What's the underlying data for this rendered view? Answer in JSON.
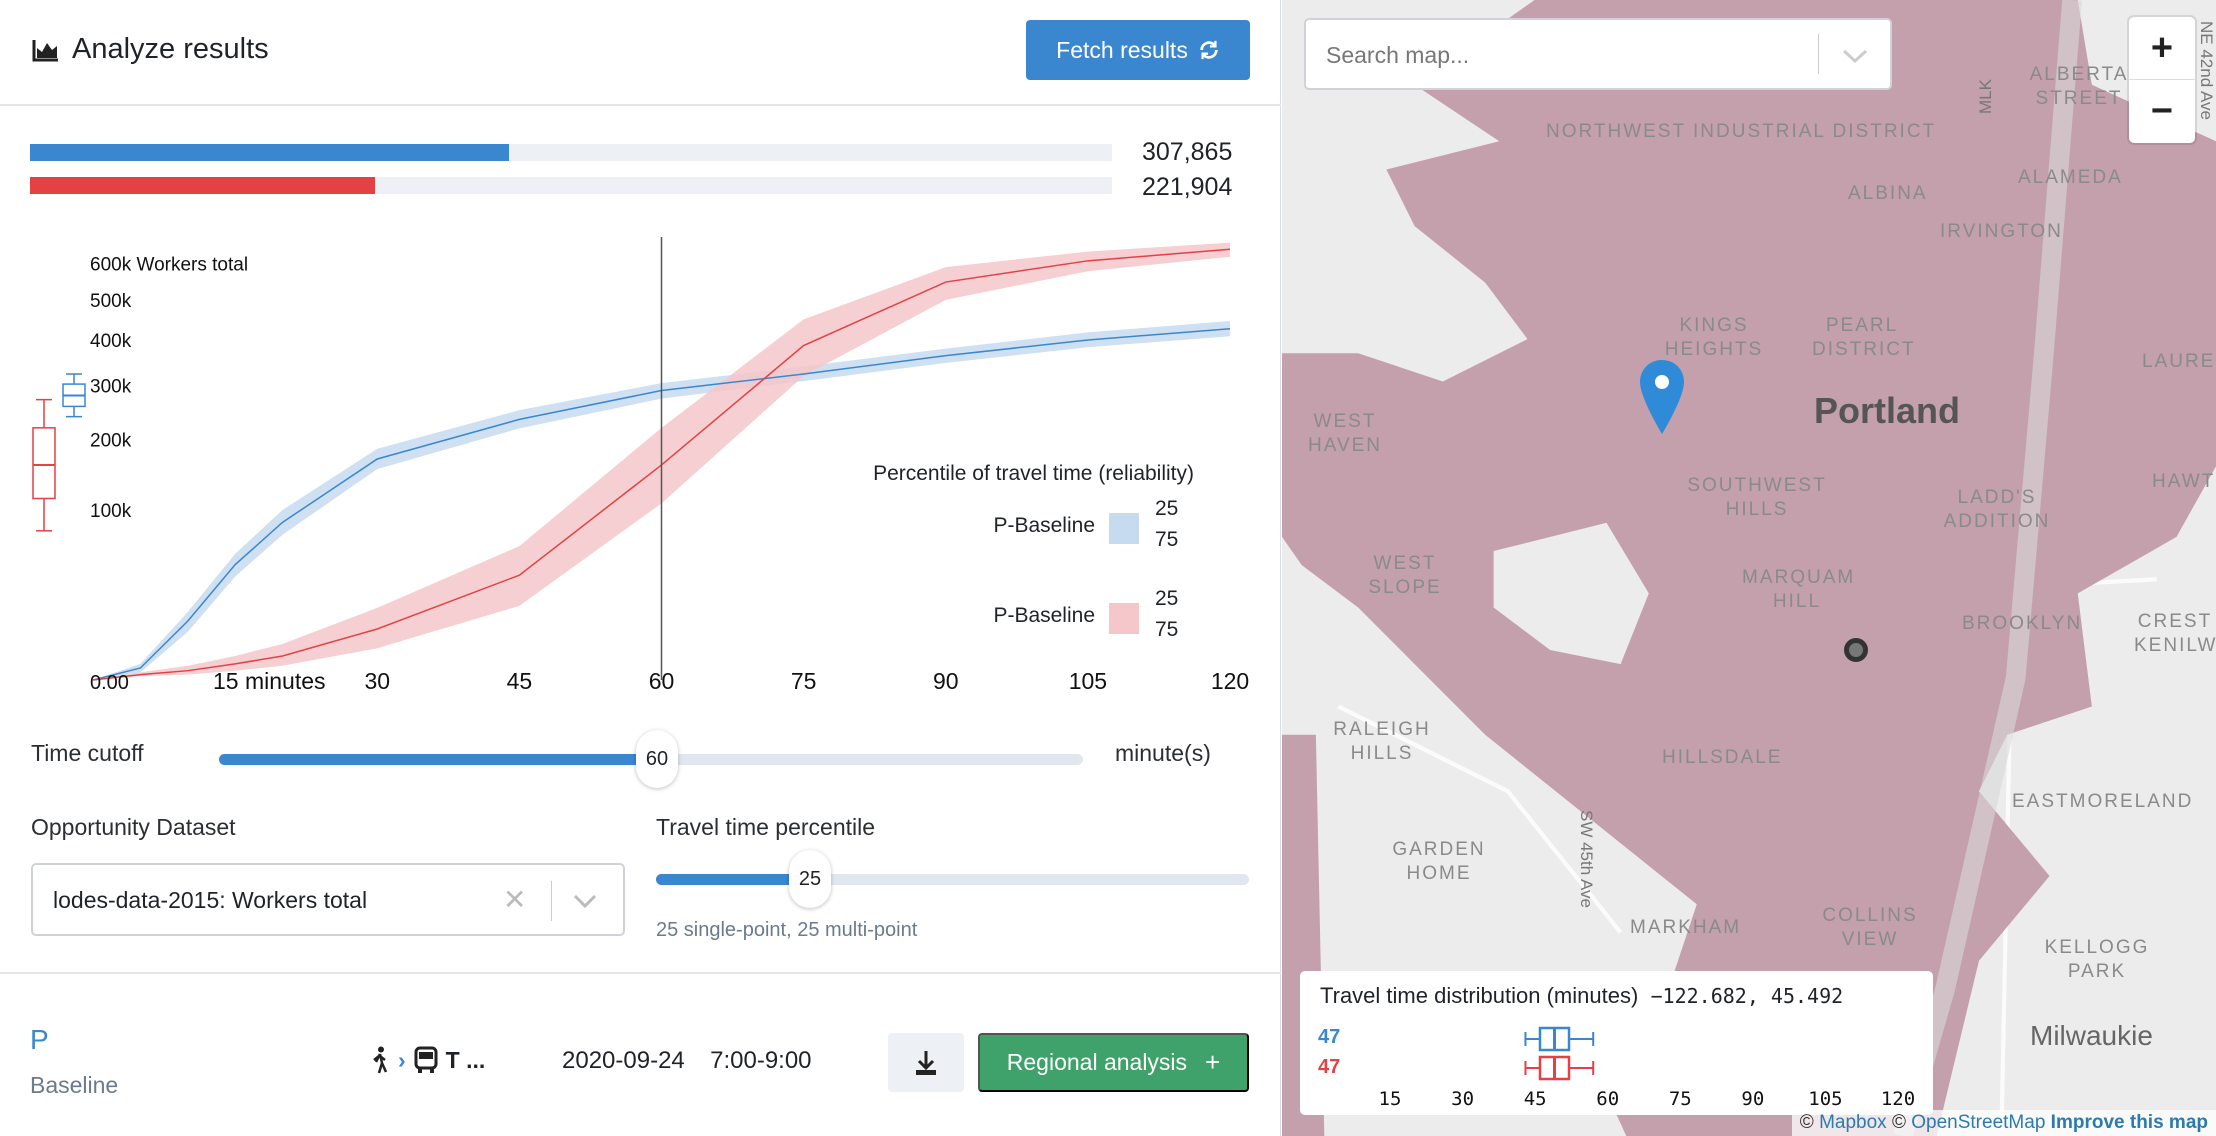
{
  "header": {
    "title": "Analyze results",
    "icon": "area-chart-icon",
    "fetch_label": "Fetch results",
    "fetch_icon": "refresh-icon"
  },
  "totals": [
    {
      "value": "307,865",
      "fraction": 0.443,
      "color": "#3a87d0"
    },
    {
      "value": "221,904",
      "fraction": 0.319,
      "color": "#e44144"
    }
  ],
  "chart_data": {
    "type": "line",
    "y_label": "Workers total",
    "y_scale": "sqrt",
    "y_ticks": [
      "0.00",
      "100k",
      "200k",
      "300k",
      "400k",
      "500k",
      "600k"
    ],
    "y_tick_values": [
      0,
      100000,
      200000,
      300000,
      400000,
      500000,
      600000
    ],
    "x_ticks": [
      "15 minutes",
      "30",
      "45",
      "60",
      "75",
      "90",
      "105",
      "120"
    ],
    "x_tick_values": [
      15,
      30,
      45,
      60,
      75,
      90,
      105,
      120
    ],
    "xlim": [
      0,
      120
    ],
    "cutoff": 60,
    "x": [
      0,
      5,
      10,
      15,
      20,
      30,
      45,
      60,
      75,
      90,
      105,
      120
    ],
    "series": [
      {
        "color": "#3a87d0",
        "band": "#c6dbf0",
        "median": [
          0,
          500,
          12000,
          46000,
          86000,
          169000,
          235000,
          290000,
          324000,
          364000,
          400000,
          427000
        ],
        "p25": [
          0,
          900,
          16000,
          55000,
          100000,
          185000,
          252000,
          305000,
          340000,
          380000,
          418000,
          446000
        ],
        "p75": [
          0,
          200,
          8000,
          37000,
          73000,
          154000,
          219000,
          274000,
          309000,
          348000,
          383000,
          409000
        ]
      },
      {
        "color": "#e44144",
        "band": "#f5c7ca",
        "median": [
          0,
          100,
          300,
          900,
          2000,
          9000,
          38000,
          160000,
          387000,
          548000,
          608000,
          642000
        ],
        "p25": [
          0,
          200,
          700,
          2000,
          4500,
          18000,
          62000,
          220000,
          450000,
          590000,
          635000,
          662000
        ],
        "p75": [
          0,
          50,
          100,
          300,
          700,
          3500,
          19000,
          108000,
          320000,
          500000,
          578000,
          620000
        ]
      }
    ],
    "boxplots": [
      {
        "color": "#3a87d0",
        "min": 240000,
        "q1": 259000,
        "median": 280000,
        "q3": 303000,
        "max": 324000
      },
      {
        "color": "#e44144",
        "min": 77000,
        "q1": 114000,
        "median": 160000,
        "q3": 220000,
        "max": 272000
      }
    ],
    "legend": {
      "title": "Percentile of travel time (reliability)",
      "entries": [
        {
          "name": "P-Baseline",
          "color": "#c6dbf0",
          "p1": "25",
          "p2": "75"
        },
        {
          "name": "P-Baseline",
          "color": "#f5c7ca",
          "p1": "25",
          "p2": "75"
        }
      ]
    }
  },
  "time_cutoff": {
    "label": "Time cutoff",
    "value": "60",
    "min": 0,
    "max": 120,
    "unit": "minute(s)"
  },
  "opportunity": {
    "label": "Opportunity Dataset",
    "value": "lodes-data-2015: Workers total"
  },
  "percentile": {
    "label": "Travel time percentile",
    "value": "25",
    "min": 1,
    "max": 99,
    "caption": "25 single-point, 25 multi-point"
  },
  "scenario": {
    "name": "P",
    "sub": "Baseline",
    "modes": "T ...",
    "date": "2020-09-24",
    "time": "7:00-9:00",
    "download_icon": "download-icon",
    "regional_label": "Regional analysis",
    "regional_icon": "plus-icon"
  },
  "map": {
    "search_placeholder": "Search map...",
    "zoom_in": "+",
    "zoom_out": "−",
    "isochrone_color": "#c3a0ab",
    "labels": [
      "NORTHWEST INDUSTRIAL DISTRICT",
      "ALBERTA STREET",
      "ALBINA",
      "ALAMEDA",
      "IRVINGTON",
      "KINGS HEIGHTS",
      "PEARL DISTRICT",
      "LAURELH",
      "Portland",
      "WEST HAVEN",
      "SOUTHWEST HILLS",
      "LADD'S ADDITION",
      "HAWTH",
      "WEST SLOPE",
      "MARQUAM HILL",
      "BROOKLYN",
      "CREST KENILW",
      "RALEIGH HILLS",
      "HILLSDALE",
      "SW 45th Ave",
      "EASTMORELAND",
      "GARDEN HOME",
      "COLLINS VIEW",
      "MARKHAM",
      "KELLOGG PARK",
      "Milwaukie",
      "MLK",
      "NE 42nd Ave"
    ],
    "distribution": {
      "title": "Travel time distribution (minutes)",
      "coords": "−122.682, 45.492",
      "rows": [
        {
          "value": "47",
          "color": "#3a87d0",
          "min": 43,
          "q1": 46,
          "median": 49,
          "q3": 52,
          "max": 57
        },
        {
          "value": "47",
          "color": "#e44144",
          "min": 43,
          "q1": 46,
          "median": 49,
          "q3": 52,
          "max": 57
        }
      ],
      "ticks": [
        "15",
        "30",
        "45",
        "60",
        "75",
        "90",
        "105",
        "120"
      ]
    },
    "attribution": {
      "c1": "©",
      "mapbox": "Mapbox",
      "c2": "©",
      "osm": "OpenStreetMap",
      "improve": "Improve this map"
    }
  }
}
